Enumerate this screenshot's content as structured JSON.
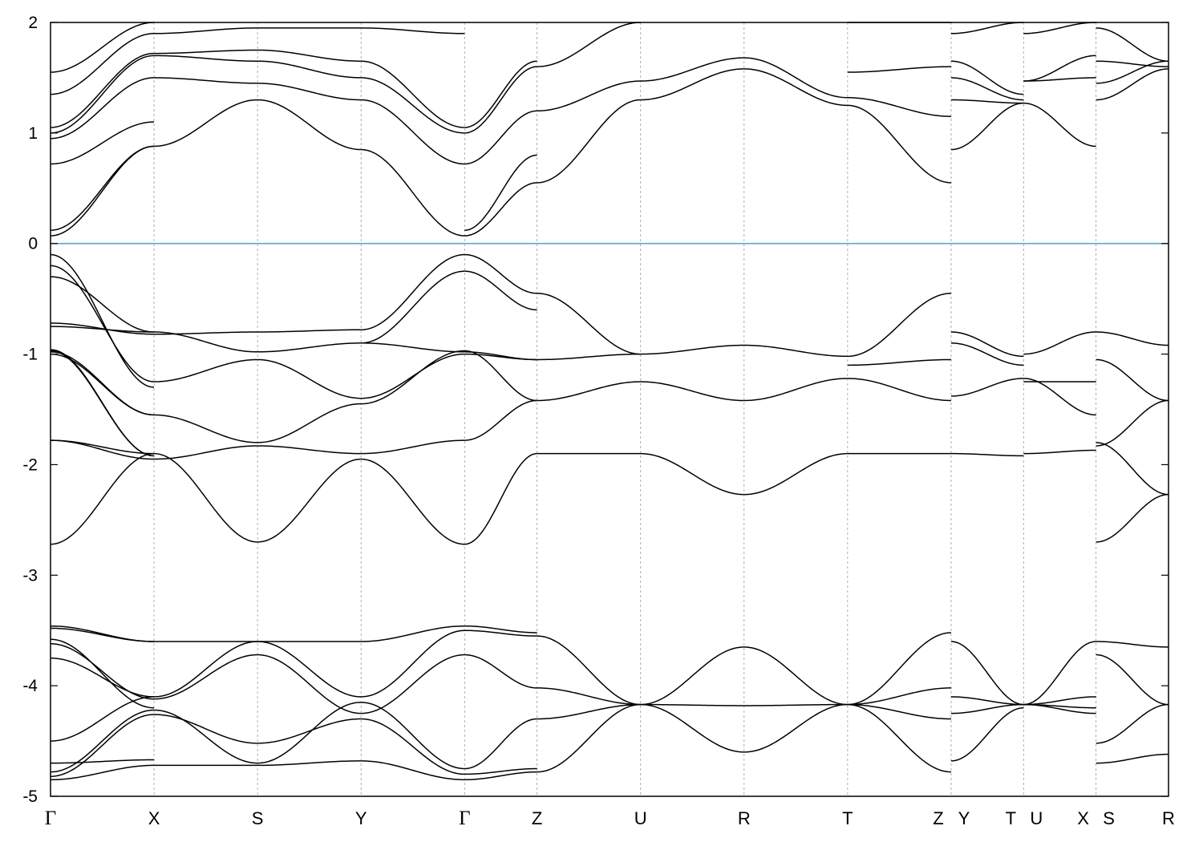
{
  "chart_data": {
    "type": "line",
    "title": "",
    "xlabel": "",
    "ylabel": "",
    "ylim": [
      -5,
      2
    ],
    "yticks": [
      -5,
      -4,
      -3,
      -2,
      -1,
      0,
      1,
      2
    ],
    "fermi_level": 0,
    "fermi_color": "#5aa9c9",
    "band_color": "#000000",
    "grid": "vertical dashed at high-symmetry points",
    "kpoints": [
      {
        "label": "Γ",
        "x": 0.0
      },
      {
        "label": "X",
        "x": 1.0
      },
      {
        "label": "S",
        "x": 2.0
      },
      {
        "label": "Y",
        "x": 3.0
      },
      {
        "label": "Γ",
        "x": 4.0
      },
      {
        "label": "Z",
        "x": 4.7
      },
      {
        "label": "U",
        "x": 5.7
      },
      {
        "label": "R",
        "x": 6.7
      },
      {
        "label": "T",
        "x": 7.7
      },
      {
        "label": "Z",
        "x": 8.7
      },
      {
        "label": "Y",
        "x": 8.7
      },
      {
        "label": "T",
        "x": 9.4
      },
      {
        "label": "U",
        "x": 9.4
      },
      {
        "label": "X",
        "x": 10.1
      },
      {
        "label": "S",
        "x": 10.1
      },
      {
        "label": "R",
        "x": 10.8
      }
    ],
    "segments": [
      {
        "from": "Γ",
        "to": "X",
        "x": [
          0.0,
          1.0
        ],
        "bands": [
          [
            -4.85,
            -4.72
          ],
          [
            -4.82,
            -4.26
          ],
          [
            -4.78,
            -4.22
          ],
          [
            -4.7,
            -4.67
          ],
          [
            -4.5,
            -4.1
          ],
          [
            -3.75,
            -4.1
          ],
          [
            -3.62,
            -4.12
          ],
          [
            -3.58,
            -4.2
          ],
          [
            -3.48,
            -3.6
          ],
          [
            -3.46,
            -3.6
          ],
          [
            -2.72,
            -1.9
          ],
          [
            -1.78,
            -1.95
          ],
          [
            -1.78,
            -1.9
          ],
          [
            -1.0,
            -1.55
          ],
          [
            -0.98,
            -1.55
          ],
          [
            -0.97,
            -1.92
          ],
          [
            -0.96,
            -1.92
          ],
          [
            -0.75,
            -0.8
          ],
          [
            -0.72,
            -0.82
          ],
          [
            -0.3,
            -0.8
          ],
          [
            -0.2,
            -1.25
          ],
          [
            -0.1,
            -1.3
          ],
          [
            0.07,
            0.88
          ],
          [
            0.12,
            0.88
          ],
          [
            0.72,
            1.1
          ],
          [
            0.95,
            1.5
          ],
          [
            1.0,
            1.7
          ],
          [
            1.05,
            1.72
          ],
          [
            1.35,
            1.9
          ],
          [
            1.55,
            2.0
          ]
        ]
      },
      {
        "from": "X",
        "to": "S",
        "x": [
          1.0,
          2.0
        ],
        "bands": [
          [
            -4.72,
            -4.72
          ],
          [
            -4.26,
            -4.52
          ],
          [
            -4.22,
            -4.7
          ],
          [
            -4.1,
            -3.6
          ],
          [
            -4.12,
            -3.72
          ],
          [
            -3.6,
            -3.6
          ],
          [
            -1.9,
            -2.7
          ],
          [
            -1.95,
            -1.83
          ],
          [
            -1.55,
            -1.8
          ],
          [
            -1.25,
            -1.05
          ],
          [
            -0.82,
            -0.8
          ],
          [
            -0.8,
            -0.98
          ],
          [
            0.88,
            1.3
          ],
          [
            1.5,
            1.45
          ],
          [
            1.7,
            1.65
          ],
          [
            1.72,
            1.75
          ],
          [
            1.9,
            1.95
          ]
        ]
      },
      {
        "from": "S",
        "to": "Y",
        "x": [
          2.0,
          3.0
        ],
        "bands": [
          [
            -4.72,
            -4.68
          ],
          [
            -4.52,
            -4.3
          ],
          [
            -4.7,
            -4.15
          ],
          [
            -3.6,
            -4.1
          ],
          [
            -3.72,
            -4.25
          ],
          [
            -3.6,
            -3.6
          ],
          [
            -2.7,
            -1.95
          ],
          [
            -1.83,
            -1.9
          ],
          [
            -1.8,
            -1.45
          ],
          [
            -1.05,
            -1.4
          ],
          [
            -0.8,
            -0.78
          ],
          [
            -0.98,
            -0.9
          ],
          [
            1.3,
            0.85
          ],
          [
            1.45,
            1.3
          ],
          [
            1.65,
            1.5
          ],
          [
            1.75,
            1.65
          ],
          [
            1.95,
            1.95
          ]
        ]
      },
      {
        "from": "Y",
        "to": "Γ",
        "x": [
          3.0,
          4.0
        ],
        "bands": [
          [
            -4.68,
            -4.85
          ],
          [
            -4.3,
            -4.8
          ],
          [
            -4.15,
            -4.75
          ],
          [
            -4.1,
            -3.5
          ],
          [
            -4.25,
            -3.72
          ],
          [
            -3.6,
            -3.46
          ],
          [
            -1.95,
            -2.72
          ],
          [
            -1.9,
            -1.78
          ],
          [
            -1.45,
            -0.97
          ],
          [
            -1.4,
            -1.0
          ],
          [
            -0.78,
            -0.1
          ],
          [
            -0.9,
            -0.25
          ],
          [
            -0.9,
            -0.98
          ],
          [
            0.85,
            0.07
          ],
          [
            1.3,
            0.72
          ],
          [
            1.5,
            1.0
          ],
          [
            1.65,
            1.05
          ],
          [
            1.95,
            1.9
          ]
        ]
      },
      {
        "from": "Γ",
        "to": "Z",
        "x": [
          4.0,
          4.7
        ],
        "bands": [
          [
            -4.85,
            -4.78
          ],
          [
            -4.8,
            -4.75
          ],
          [
            -4.75,
            -4.3
          ],
          [
            -3.5,
            -3.55
          ],
          [
            -3.72,
            -4.02
          ],
          [
            -3.46,
            -3.52
          ],
          [
            -2.72,
            -1.9
          ],
          [
            -1.78,
            -1.42
          ],
          [
            -0.97,
            -1.42
          ],
          [
            -1.0,
            -1.05
          ],
          [
            -0.1,
            -0.45
          ],
          [
            -0.25,
            -0.6
          ],
          [
            -0.98,
            -1.05
          ],
          [
            0.07,
            0.55
          ],
          [
            0.12,
            0.8
          ],
          [
            0.72,
            1.2
          ],
          [
            1.0,
            1.6
          ],
          [
            1.05,
            1.65
          ]
        ]
      },
      {
        "from": "Z",
        "to": "U",
        "x": [
          4.7,
          5.7
        ],
        "bands": [
          [
            -4.78,
            -4.17
          ],
          [
            -4.3,
            -4.17
          ],
          [
            -4.02,
            -4.17
          ],
          [
            -3.55,
            -4.17
          ],
          [
            -1.9,
            -1.9
          ],
          [
            -1.42,
            -1.25
          ],
          [
            -1.05,
            -1.0
          ],
          [
            -0.45,
            -1.0
          ],
          [
            0.55,
            1.3
          ],
          [
            1.2,
            1.47
          ],
          [
            1.6,
            2.0
          ]
        ]
      },
      {
        "from": "U",
        "to": "R",
        "x": [
          5.7,
          6.7
        ],
        "bands": [
          [
            -4.17,
            -4.6
          ],
          [
            -4.17,
            -4.18
          ],
          [
            -4.17,
            -3.65
          ],
          [
            -1.9,
            -2.27
          ],
          [
            -1.25,
            -1.42
          ],
          [
            -1.0,
            -0.92
          ],
          [
            1.3,
            1.58
          ],
          [
            1.47,
            1.68
          ]
        ]
      },
      {
        "from": "R",
        "to": "T",
        "x": [
          6.7,
          7.7
        ],
        "bands": [
          [
            -4.6,
            -4.17
          ],
          [
            -4.18,
            -4.17
          ],
          [
            -3.65,
            -4.17
          ],
          [
            -2.27,
            -1.9
          ],
          [
            -1.42,
            -1.22
          ],
          [
            -0.92,
            -1.02
          ],
          [
            1.58,
            1.25
          ],
          [
            1.68,
            1.32
          ]
        ]
      },
      {
        "from": "T",
        "to": "Z",
        "x": [
          7.7,
          8.7
        ],
        "bands": [
          [
            -4.17,
            -4.78
          ],
          [
            -4.17,
            -4.3
          ],
          [
            -4.17,
            -4.02
          ],
          [
            -4.17,
            -3.52
          ],
          [
            -1.9,
            -1.9
          ],
          [
            -1.22,
            -1.42
          ],
          [
            -1.02,
            -0.45
          ],
          [
            -1.1,
            -1.05
          ],
          [
            1.25,
            0.55
          ],
          [
            1.32,
            1.15
          ],
          [
            1.55,
            1.6
          ],
          [
            2.0,
            2.0
          ]
        ]
      },
      {
        "from": "Y",
        "to": "T",
        "x": [
          8.7,
          9.4
        ],
        "bands": [
          [
            -4.68,
            -4.2
          ],
          [
            -4.1,
            -4.17
          ],
          [
            -4.25,
            -4.17
          ],
          [
            -3.6,
            -4.17
          ],
          [
            -1.9,
            -1.92
          ],
          [
            -1.38,
            -1.22
          ],
          [
            -0.8,
            -1.02
          ],
          [
            -0.9,
            -1.1
          ],
          [
            0.85,
            1.27
          ],
          [
            1.3,
            1.27
          ],
          [
            1.5,
            1.3
          ],
          [
            1.65,
            1.35
          ],
          [
            1.9,
            2.0
          ]
        ]
      },
      {
        "from": "U",
        "to": "X",
        "x": [
          9.4,
          10.1
        ],
        "bands": [
          [
            -4.17,
            -4.25
          ],
          [
            -4.17,
            -4.1
          ],
          [
            -4.17,
            -3.6
          ],
          [
            -4.17,
            -4.2
          ],
          [
            -1.9,
            -1.87
          ],
          [
            -1.22,
            -1.55
          ],
          [
            -1.25,
            -1.25
          ],
          [
            -1.0,
            -0.8
          ],
          [
            1.27,
            0.88
          ],
          [
            1.47,
            1.7
          ],
          [
            1.47,
            1.5
          ],
          [
            1.9,
            2.0
          ]
        ]
      },
      {
        "from": "S",
        "to": "R",
        "x": [
          10.1,
          10.8
        ],
        "bands": [
          [
            -4.7,
            -4.62
          ],
          [
            -4.52,
            -4.17
          ],
          [
            -3.6,
            -3.65
          ],
          [
            -3.72,
            -4.17
          ],
          [
            -2.7,
            -2.27
          ],
          [
            -1.83,
            -1.42
          ],
          [
            -1.8,
            -2.27
          ],
          [
            -1.05,
            -1.42
          ],
          [
            -0.8,
            -0.92
          ],
          [
            1.3,
            1.58
          ],
          [
            1.45,
            1.65
          ],
          [
            1.65,
            1.6
          ],
          [
            1.95,
            1.65
          ]
        ]
      }
    ]
  }
}
